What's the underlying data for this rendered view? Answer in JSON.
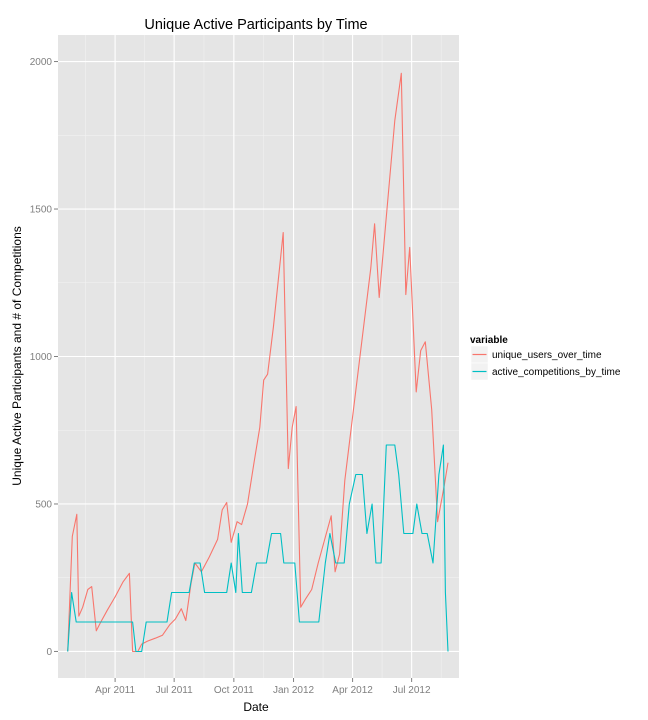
{
  "chart_data": {
    "type": "line",
    "title": "Unique Active Participants by Time",
    "xlabel": "Date",
    "ylabel": "Unique Active Participants and # of Competitions",
    "x_axis": {
      "type": "date",
      "range": [
        "2011-01-03",
        "2012-09-12"
      ],
      "ticks": [
        {
          "date": "2011-04-01",
          "label": "Apr 2011"
        },
        {
          "date": "2011-07-01",
          "label": "Jul 2011"
        },
        {
          "date": "2011-10-01",
          "label": "Oct 2011"
        },
        {
          "date": "2012-01-01",
          "label": "Jan 2012"
        },
        {
          "date": "2012-04-01",
          "label": "Apr 2012"
        },
        {
          "date": "2012-07-01",
          "label": "Jul 2012"
        }
      ]
    },
    "y_axis": {
      "range": [
        -90,
        2090
      ],
      "ticks": [
        0,
        500,
        1000,
        1500,
        2000
      ],
      "minor_ticks": [
        250,
        750,
        1250,
        1750
      ]
    },
    "grid": true,
    "panel_background": "#E5E5E5",
    "legend": {
      "title": "variable",
      "placement": "right"
    },
    "series": [
      {
        "name": "unique_users_over_time",
        "color": "#F8766D",
        "points": [
          [
            "2011-01-18",
            0
          ],
          [
            "2011-01-25",
            390
          ],
          [
            "2011-02-01",
            465
          ],
          [
            "2011-02-04",
            120
          ],
          [
            "2011-02-10",
            150
          ],
          [
            "2011-02-18",
            210
          ],
          [
            "2011-02-24",
            220
          ],
          [
            "2011-03-03",
            70
          ],
          [
            "2011-03-10",
            100
          ],
          [
            "2011-03-20",
            140
          ],
          [
            "2011-04-01",
            185
          ],
          [
            "2011-04-13",
            235
          ],
          [
            "2011-04-23",
            265
          ],
          [
            "2011-04-28",
            0
          ],
          [
            "2011-05-06",
            0
          ],
          [
            "2011-05-12",
            25
          ],
          [
            "2011-05-21",
            35
          ],
          [
            "2011-06-02",
            45
          ],
          [
            "2011-06-13",
            55
          ],
          [
            "2011-06-24",
            90
          ],
          [
            "2011-07-03",
            110
          ],
          [
            "2011-07-12",
            145
          ],
          [
            "2011-07-19",
            105
          ],
          [
            "2011-07-27",
            230
          ],
          [
            "2011-08-02",
            300
          ],
          [
            "2011-08-12",
            270
          ],
          [
            "2011-08-24",
            320
          ],
          [
            "2011-09-06",
            380
          ],
          [
            "2011-09-13",
            480
          ],
          [
            "2011-09-20",
            505
          ],
          [
            "2011-09-27",
            370
          ],
          [
            "2011-10-06",
            440
          ],
          [
            "2011-10-13",
            430
          ],
          [
            "2011-10-22",
            500
          ],
          [
            "2011-11-01",
            640
          ],
          [
            "2011-11-10",
            760
          ],
          [
            "2011-11-16",
            920
          ],
          [
            "2011-11-22",
            940
          ],
          [
            "2011-12-01",
            1100
          ],
          [
            "2011-12-08",
            1250
          ],
          [
            "2011-12-16",
            1420
          ],
          [
            "2011-12-24",
            620
          ],
          [
            "2011-12-30",
            760
          ],
          [
            "2012-01-05",
            830
          ],
          [
            "2012-01-12",
            150
          ],
          [
            "2012-01-20",
            180
          ],
          [
            "2012-01-29",
            210
          ],
          [
            "2012-02-08",
            300
          ],
          [
            "2012-02-18",
            380
          ],
          [
            "2012-02-28",
            460
          ],
          [
            "2012-03-05",
            270
          ],
          [
            "2012-03-12",
            330
          ],
          [
            "2012-03-20",
            580
          ],
          [
            "2012-03-30",
            760
          ],
          [
            "2012-04-09",
            940
          ],
          [
            "2012-04-19",
            1120
          ],
          [
            "2012-04-29",
            1300
          ],
          [
            "2012-05-05",
            1450
          ],
          [
            "2012-05-12",
            1200
          ],
          [
            "2012-05-20",
            1400
          ],
          [
            "2012-05-28",
            1600
          ],
          [
            "2012-06-05",
            1800
          ],
          [
            "2012-06-15",
            1960
          ],
          [
            "2012-06-22",
            1210
          ],
          [
            "2012-06-28",
            1370
          ],
          [
            "2012-07-08",
            880
          ],
          [
            "2012-07-15",
            1020
          ],
          [
            "2012-07-22",
            1050
          ],
          [
            "2012-08-01",
            820
          ],
          [
            "2012-08-10",
            440
          ],
          [
            "2012-08-20",
            560
          ],
          [
            "2012-08-26",
            640
          ]
        ]
      },
      {
        "name": "active_competitions_by_time",
        "color": "#00BFC4",
        "points": [
          [
            "2011-01-18",
            0
          ],
          [
            "2011-01-24",
            200
          ],
          [
            "2011-01-31",
            100
          ],
          [
            "2011-03-01",
            100
          ],
          [
            "2011-04-28",
            100
          ],
          [
            "2011-05-03",
            0
          ],
          [
            "2011-05-12",
            0
          ],
          [
            "2011-05-19",
            100
          ],
          [
            "2011-06-20",
            100
          ],
          [
            "2011-06-27",
            200
          ],
          [
            "2011-07-24",
            200
          ],
          [
            "2011-08-01",
            300
          ],
          [
            "2011-08-10",
            300
          ],
          [
            "2011-08-17",
            200
          ],
          [
            "2011-09-20",
            200
          ],
          [
            "2011-09-27",
            300
          ],
          [
            "2011-10-04",
            200
          ],
          [
            "2011-10-08",
            400
          ],
          [
            "2011-10-14",
            200
          ],
          [
            "2011-10-28",
            200
          ],
          [
            "2011-11-05",
            300
          ],
          [
            "2011-11-20",
            300
          ],
          [
            "2011-11-28",
            400
          ],
          [
            "2011-12-12",
            400
          ],
          [
            "2011-12-17",
            300
          ],
          [
            "2012-01-03",
            300
          ],
          [
            "2012-01-10",
            100
          ],
          [
            "2012-02-09",
            100
          ],
          [
            "2012-02-19",
            300
          ],
          [
            "2012-02-26",
            400
          ],
          [
            "2012-03-06",
            300
          ],
          [
            "2012-03-19",
            300
          ],
          [
            "2012-03-27",
            500
          ],
          [
            "2012-04-06",
            600
          ],
          [
            "2012-04-16",
            600
          ],
          [
            "2012-04-23",
            400
          ],
          [
            "2012-05-01",
            500
          ],
          [
            "2012-05-07",
            300
          ],
          [
            "2012-05-15",
            300
          ],
          [
            "2012-05-23",
            700
          ],
          [
            "2012-06-05",
            700
          ],
          [
            "2012-06-11",
            600
          ],
          [
            "2012-06-19",
            400
          ],
          [
            "2012-07-03",
            400
          ],
          [
            "2012-07-09",
            500
          ],
          [
            "2012-07-17",
            400
          ],
          [
            "2012-07-25",
            400
          ],
          [
            "2012-08-03",
            300
          ],
          [
            "2012-08-12",
            600
          ],
          [
            "2012-08-19",
            700
          ],
          [
            "2012-08-22",
            200
          ],
          [
            "2012-08-26",
            0
          ]
        ]
      }
    ]
  }
}
